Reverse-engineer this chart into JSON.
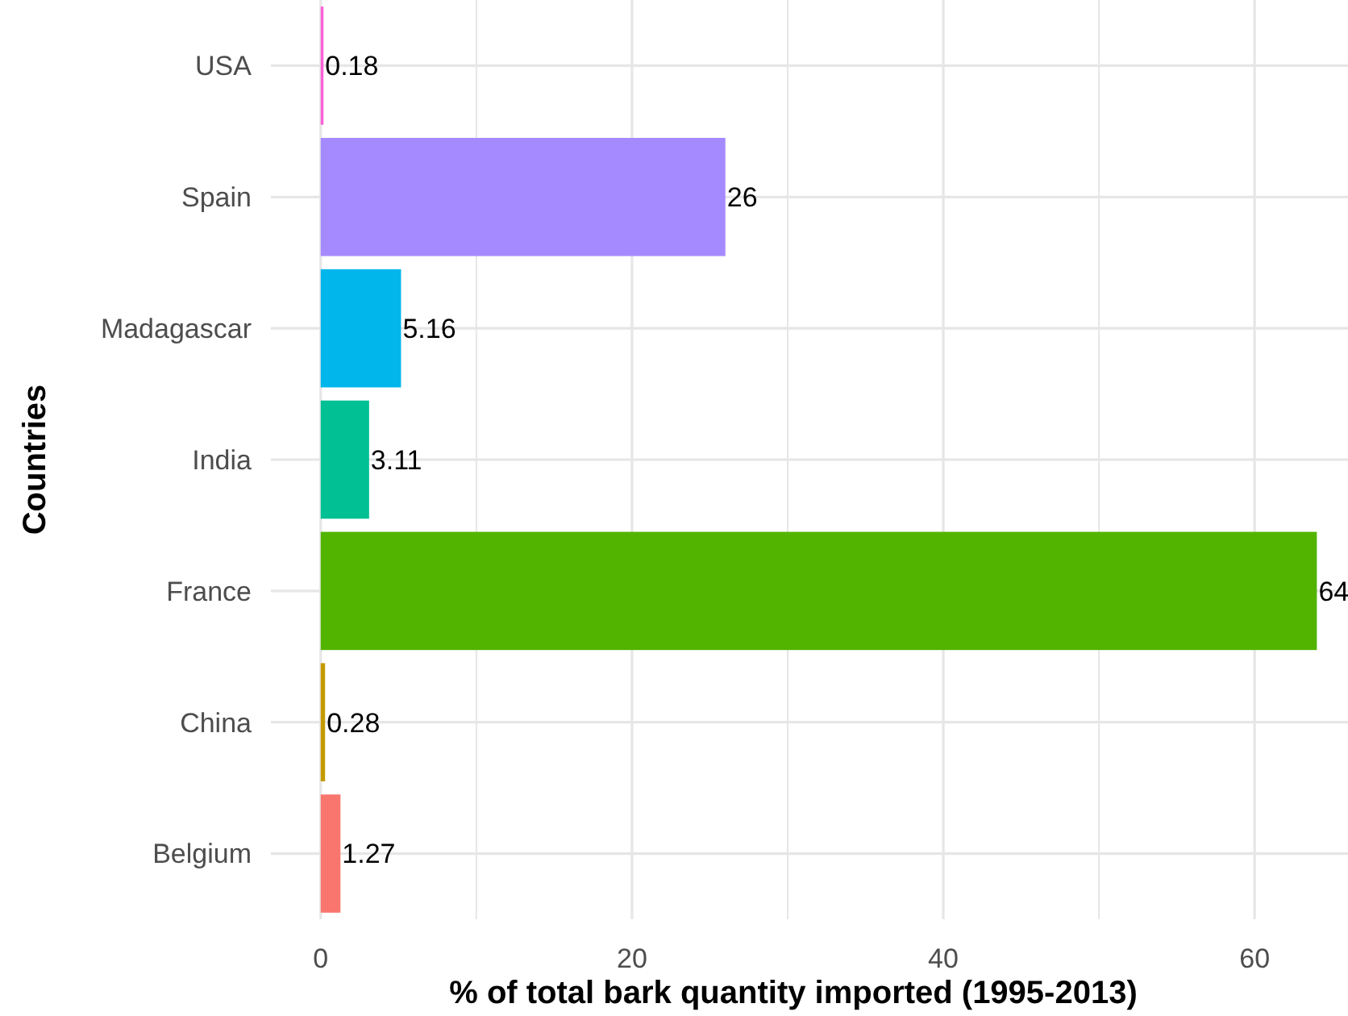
{
  "chart_data": {
    "type": "bar",
    "orientation": "horizontal",
    "xlabel": "% of total bark quantity imported (1995-2013)",
    "ylabel": "Countries",
    "categories": [
      "USA",
      "Spain",
      "Madagascar",
      "India",
      "France",
      "China",
      "Belgium"
    ],
    "values": [
      0.18,
      26,
      5.16,
      3.11,
      64,
      0.28,
      1.27
    ],
    "colors": [
      "#fb61d7",
      "#a58aff",
      "#00b6eb",
      "#00c094",
      "#53b400",
      "#c49a00",
      "#f8766d"
    ],
    "xlim": [
      -3.2,
      66
    ],
    "xticks": [
      0,
      {
        "value": 10,
        "label": null
      },
      20,
      {
        "value": 30,
        "label": null
      },
      40,
      {
        "value": 50,
        "label": null
      },
      60
    ],
    "grid": true,
    "data_labels": true
  }
}
